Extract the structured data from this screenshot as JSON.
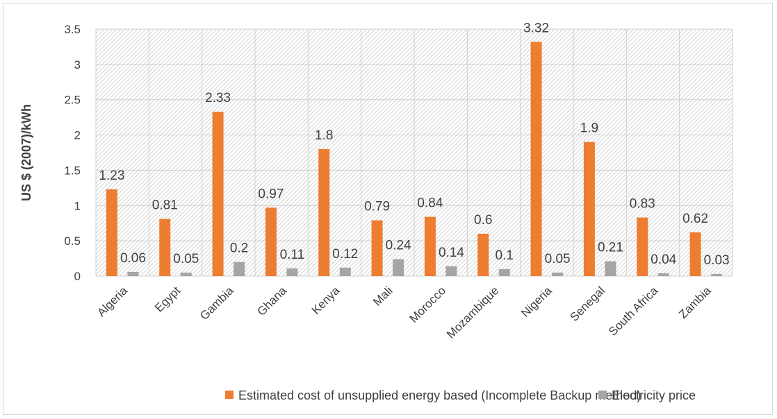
{
  "chart_data": {
    "type": "bar",
    "title": "",
    "xlabel": "",
    "ylabel": "US $ (2007)/kWh",
    "ylim": [
      0,
      3.5
    ],
    "yticks": [
      "0",
      "0.5",
      "1",
      "1.5",
      "2",
      "2.5",
      "3",
      "3.5"
    ],
    "grid": true,
    "legend_position": "bottom",
    "categories": [
      "Algeria",
      "Egypt",
      "Gambia",
      "Ghana",
      "Kenya",
      "Mali",
      "Morocco",
      "Mozambique",
      "Nigeria",
      "Senegal",
      "South Africa",
      "Zambia"
    ],
    "series": [
      {
        "name": "Estimated cost of unsupplied energy based (Incomplete Backup method)",
        "color": "#ED7D31",
        "values": [
          1.23,
          0.81,
          2.33,
          0.97,
          1.8,
          0.79,
          0.84,
          0.6,
          3.32,
          1.9,
          0.83,
          0.62
        ],
        "labels": [
          "1.23",
          "0.81",
          "2.33",
          "0.97",
          "1.8",
          "0.79",
          "0.84",
          "0.6",
          "3.32",
          "1.9",
          "0.83",
          "0.62"
        ]
      },
      {
        "name": "Electricity price",
        "color": "#A5A5A5",
        "values": [
          0.06,
          0.05,
          0.2,
          0.11,
          0.12,
          0.24,
          0.14,
          0.1,
          0.05,
          0.21,
          0.04,
          0.03
        ],
        "labels": [
          "0.06",
          "0.05",
          "0.2",
          "0.11",
          "0.12",
          "0.24",
          "0.14",
          "0.1",
          "0.05",
          "0.21",
          "0.04",
          "0.03"
        ]
      }
    ]
  }
}
